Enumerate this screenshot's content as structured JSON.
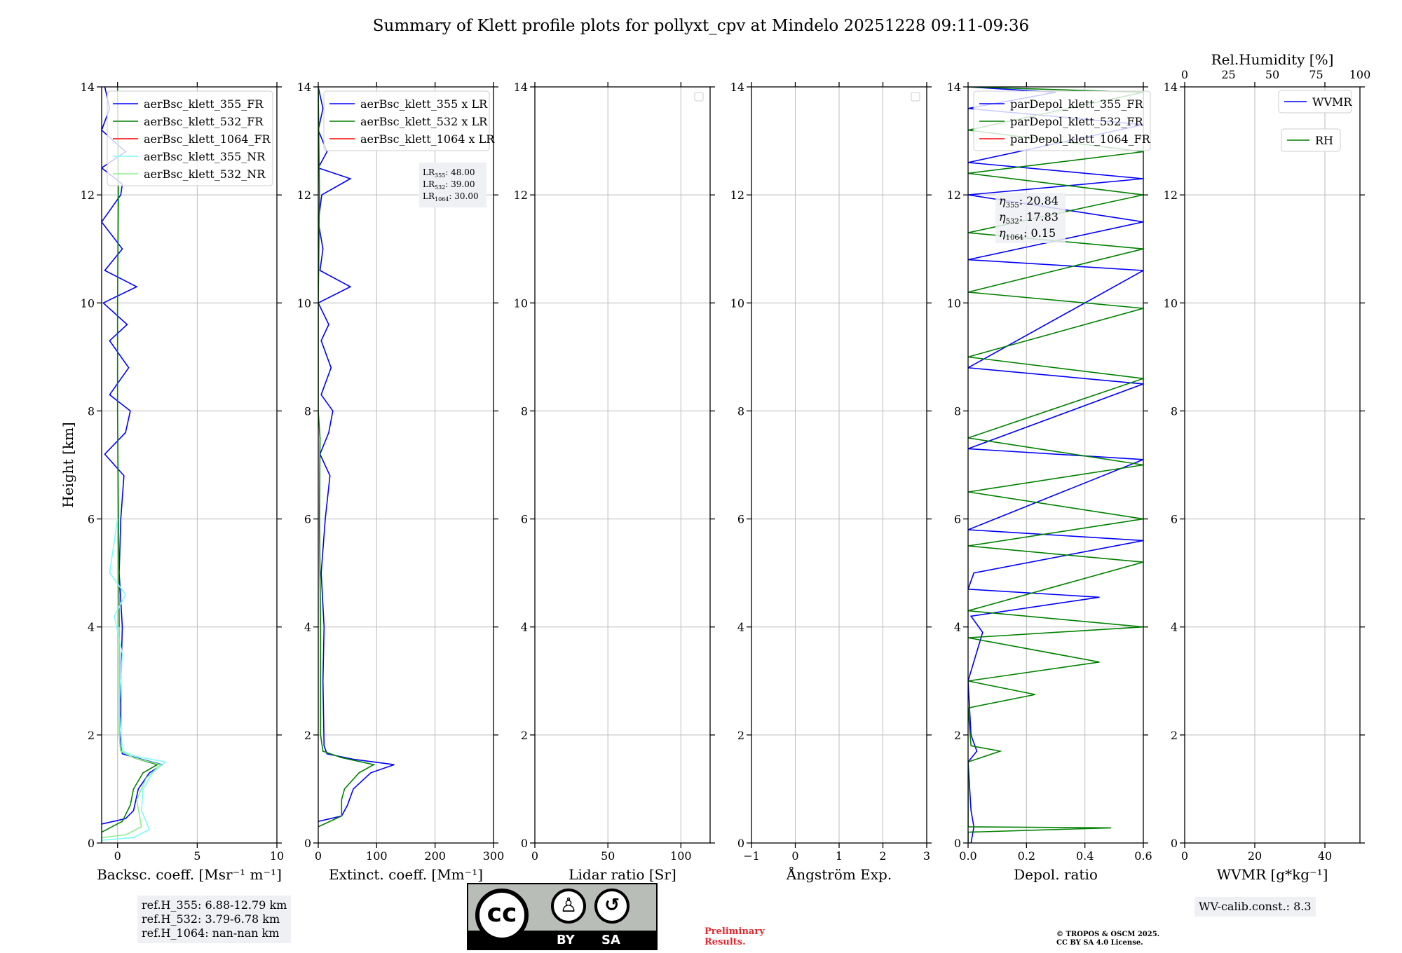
{
  "title": "Summary of Klett profile plots for pollyxt_cpv at Mindelo 20251228 09:11-09:36",
  "colors": {
    "b355": "#0000ff",
    "b532": "#008000",
    "b1064": "#ff0000",
    "n355": "#7ffbf5",
    "n532": "#90ee90"
  },
  "chart_data": [
    {
      "type": "line",
      "id": "backscatter",
      "xlabel": "Backsc. coeff. [Msr⁻¹ m⁻¹]",
      "ylabel": "Height [km]",
      "xlim": [
        -1,
        10
      ],
      "ylim": [
        0,
        14
      ],
      "xticks": [
        0,
        5,
        10
      ],
      "xtick_labels": [
        "0",
        "5",
        "10"
      ],
      "yticks": [
        0,
        2,
        4,
        6,
        8,
        10,
        12,
        14
      ],
      "legend": [
        "aerBsc_klett_355_FR",
        "aerBsc_klett_532_FR",
        "aerBsc_klett_1064_FR",
        "aerBsc_klett_355_NR",
        "aerBsc_klett_532_NR"
      ],
      "series": [
        {
          "name": "aerBsc_klett_355_FR",
          "color": "b355",
          "points": [
            [
              -1,
              0.35
            ],
            [
              0.5,
              0.45
            ],
            [
              1.0,
              0.6
            ],
            [
              1.3,
              1.0
            ],
            [
              2.0,
              1.3
            ],
            [
              2.8,
              1.45
            ],
            [
              1.5,
              1.55
            ],
            [
              0.3,
              1.65
            ],
            [
              0.2,
              1.8
            ],
            [
              0.2,
              3.0
            ],
            [
              0.3,
              4.0
            ],
            [
              0.1,
              5.0
            ],
            [
              0.2,
              6.0
            ],
            [
              0.4,
              6.8
            ],
            [
              -0.8,
              7.2
            ],
            [
              0.5,
              7.6
            ],
            [
              0.8,
              8.0
            ],
            [
              -0.5,
              8.3
            ],
            [
              0.7,
              8.8
            ],
            [
              -0.5,
              9.3
            ],
            [
              0.6,
              9.6
            ],
            [
              -0.9,
              10.0
            ],
            [
              1.2,
              10.3
            ],
            [
              -0.8,
              10.6
            ],
            [
              0.3,
              11.0
            ],
            [
              -1,
              11.5
            ],
            [
              0.2,
              12.0
            ],
            [
              0.3,
              12.2
            ],
            [
              -1,
              12.5
            ],
            [
              0.5,
              12.8
            ],
            [
              -1,
              13.2
            ],
            [
              -0.5,
              13.6
            ],
            [
              -0.8,
              14.0
            ]
          ]
        },
        {
          "name": "aerBsc_klett_532_FR",
          "color": "b532",
          "points": [
            [
              -1,
              0.2
            ],
            [
              0.3,
              0.4
            ],
            [
              0.8,
              0.7
            ],
            [
              1.0,
              1.0
            ],
            [
              1.6,
              1.3
            ],
            [
              2.5,
              1.45
            ],
            [
              1.0,
              1.58
            ],
            [
              0.2,
              1.7
            ],
            [
              0.1,
              2.0
            ],
            [
              0.1,
              4.0
            ],
            [
              0.05,
              6.0
            ],
            [
              0.0,
              8.0
            ],
            [
              0.0,
              10.0
            ],
            [
              0.05,
              12.0
            ],
            [
              0.0,
              14.0
            ]
          ]
        },
        {
          "name": "aerBsc_klett_355_NR",
          "color": "n355",
          "points": [
            [
              -1,
              0.05
            ],
            [
              1.0,
              0.1
            ],
            [
              2.0,
              0.25
            ],
            [
              1.5,
              0.6
            ],
            [
              1.6,
              1.0
            ],
            [
              2.2,
              1.3
            ],
            [
              3.0,
              1.5
            ],
            [
              1.2,
              1.6
            ],
            [
              0.3,
              1.7
            ],
            [
              0.1,
              2.5
            ],
            [
              0.3,
              3.5
            ],
            [
              -0.2,
              4.2
            ],
            [
              0.5,
              4.6
            ],
            [
              -0.5,
              5.0
            ],
            [
              0.0,
              6.0
            ]
          ]
        },
        {
          "name": "aerBsc_klett_532_NR",
          "color": "n532",
          "points": [
            [
              -1,
              0.1
            ],
            [
              0.5,
              0.15
            ],
            [
              1.5,
              0.3
            ],
            [
              1.2,
              0.8
            ],
            [
              1.8,
              1.2
            ],
            [
              2.7,
              1.45
            ],
            [
              1.0,
              1.58
            ],
            [
              0.2,
              1.7
            ],
            [
              0.1,
              2.0
            ],
            [
              0.1,
              4.0
            ]
          ]
        }
      ]
    },
    {
      "type": "line",
      "id": "extinction",
      "xlabel": "Extinct. coeff. [Mm⁻¹]",
      "xlim": [
        0,
        300
      ],
      "ylim": [
        0,
        14
      ],
      "xticks": [
        0,
        100,
        200,
        300
      ],
      "xtick_labels": [
        "0",
        "100",
        "200",
        "300"
      ],
      "yticks": [
        0,
        2,
        4,
        6,
        8,
        10,
        12,
        14
      ],
      "legend": [
        "aerBsc_klett_355 x LR",
        "aerBsc_klett_532 x LR",
        "aerBsc_klett_1064 x LR"
      ],
      "series": [
        {
          "name": "aerBsc_klett_355 x LR",
          "color": "b355",
          "points": [
            [
              0,
              0.4
            ],
            [
              40,
              0.5
            ],
            [
              50,
              0.7
            ],
            [
              60,
              1.0
            ],
            [
              90,
              1.3
            ],
            [
              130,
              1.45
            ],
            [
              60,
              1.55
            ],
            [
              15,
              1.65
            ],
            [
              10,
              1.8
            ],
            [
              8,
              3.0
            ],
            [
              10,
              4.0
            ],
            [
              5,
              5.0
            ],
            [
              12,
              6.0
            ],
            [
              20,
              6.8
            ],
            [
              3,
              7.2
            ],
            [
              18,
              7.6
            ],
            [
              25,
              8.0
            ],
            [
              5,
              8.3
            ],
            [
              22,
              8.8
            ],
            [
              5,
              9.3
            ],
            [
              18,
              9.6
            ],
            [
              0,
              10.0
            ],
            [
              55,
              10.3
            ],
            [
              3,
              10.6
            ],
            [
              8,
              11.0
            ],
            [
              0,
              11.5
            ],
            [
              6,
              12.0
            ],
            [
              55,
              12.3
            ],
            [
              0,
              12.5
            ],
            [
              15,
              12.8
            ],
            [
              0,
              13.2
            ],
            [
              8,
              13.6
            ],
            [
              0,
              14.0
            ]
          ]
        },
        {
          "name": "aerBsc_klett_532 x LR",
          "color": "b532",
          "points": [
            [
              0,
              0.3
            ],
            [
              40,
              0.5
            ],
            [
              40,
              0.8
            ],
            [
              45,
              1.0
            ],
            [
              70,
              1.3
            ],
            [
              95,
              1.45
            ],
            [
              40,
              1.58
            ],
            [
              8,
              1.7
            ],
            [
              4,
              2.0
            ],
            [
              4,
              4.0
            ],
            [
              2,
              6.0
            ],
            [
              3,
              7.5
            ],
            [
              0,
              8.0
            ],
            [
              0,
              10.0
            ],
            [
              2,
              12.0
            ],
            [
              0,
              14.0
            ]
          ]
        }
      ]
    },
    {
      "type": "line",
      "id": "lidar_ratio",
      "xlabel": "Lidar ratio [Sr]",
      "xlim": [
        0,
        120
      ],
      "ylim": [
        0,
        14
      ],
      "xticks": [
        0,
        50,
        100
      ],
      "xtick_labels": [
        "0",
        "50",
        "100"
      ],
      "yticks": [
        0,
        2,
        4,
        6,
        8,
        10,
        12,
        14
      ],
      "series": []
    },
    {
      "type": "line",
      "id": "angstrom",
      "xlabel": "Ångström Exp.",
      "xlim": [
        -1,
        3
      ],
      "ylim": [
        0,
        14
      ],
      "xticks": [
        -1,
        0,
        1,
        2,
        3
      ],
      "xtick_labels": [
        "−1",
        "0",
        "1",
        "2",
        "3"
      ],
      "yticks": [
        0,
        2,
        4,
        6,
        8,
        10,
        12,
        14
      ],
      "series": []
    },
    {
      "type": "line",
      "id": "depol",
      "xlabel": "Depol. ratio",
      "xlim": [
        0,
        0.6
      ],
      "ylim": [
        0,
        14
      ],
      "xticks": [
        0,
        0.2,
        0.4,
        0.6
      ],
      "xtick_labels": [
        "0.0",
        "0.2",
        "0.4",
        "0.6"
      ],
      "yticks": [
        0,
        2,
        4,
        6,
        8,
        10,
        12,
        14
      ],
      "legend": [
        "parDepol_klett_355_FR",
        "parDepol_klett_532_FR",
        "parDepol_klett_1064_FR"
      ],
      "series": [
        {
          "name": "parDepol_klett_355_FR",
          "color": "b355",
          "points": [
            [
              0.01,
              0
            ],
            [
              0.02,
              0.3
            ],
            [
              0.01,
              0.6
            ],
            [
              0.0,
              1.5
            ],
            [
              0.03,
              1.7
            ],
            [
              0.01,
              2.0
            ],
            [
              0.0,
              3.0
            ],
            [
              0.05,
              3.9
            ],
            [
              0.01,
              4.2
            ],
            [
              0.45,
              4.55
            ],
            [
              0.0,
              4.7
            ],
            [
              0.02,
              5.0
            ],
            [
              0.6,
              5.6
            ],
            [
              0.0,
              5.8
            ],
            [
              0.6,
              7.1
            ],
            [
              0.0,
              7.3
            ],
            [
              0.6,
              8.5
            ],
            [
              0.0,
              8.8
            ],
            [
              0.6,
              10.6
            ],
            [
              0.0,
              10.8
            ],
            [
              0.6,
              11.5
            ],
            [
              0.0,
              12.0
            ],
            [
              0.6,
              12.3
            ],
            [
              0.0,
              12.6
            ],
            [
              0.6,
              13.3
            ],
            [
              0.0,
              13.6
            ],
            [
              0.3,
              13.9
            ],
            [
              0.0,
              14.0
            ]
          ]
        },
        {
          "name": "parDepol_klett_532_FR",
          "color": "b532",
          "points": [
            [
              0.0,
              0
            ],
            [
              0.0,
              0.2
            ],
            [
              0.49,
              0.28
            ],
            [
              0.0,
              0.3
            ],
            [
              0.0,
              1.5
            ],
            [
              0.11,
              1.7
            ],
            [
              0.01,
              1.8
            ],
            [
              0.0,
              2.5
            ],
            [
              0.23,
              2.75
            ],
            [
              0.0,
              3.0
            ],
            [
              0.45,
              3.35
            ],
            [
              0.0,
              3.8
            ],
            [
              0.6,
              4.0
            ],
            [
              0.0,
              4.3
            ],
            [
              0.6,
              5.2
            ],
            [
              0.0,
              5.5
            ],
            [
              0.6,
              6.0
            ],
            [
              0.0,
              6.5
            ],
            [
              0.6,
              7.0
            ],
            [
              0.0,
              7.5
            ],
            [
              0.6,
              8.6
            ],
            [
              0.0,
              9.0
            ],
            [
              0.6,
              9.9
            ],
            [
              0.0,
              10.2
            ],
            [
              0.6,
              11.0
            ],
            [
              0.0,
              11.3
            ],
            [
              0.6,
              12.0
            ],
            [
              0.0,
              12.4
            ],
            [
              0.6,
              12.8
            ],
            [
              0.0,
              13.2
            ],
            [
              0.6,
              13.9
            ],
            [
              0.0,
              14.0
            ]
          ]
        }
      ]
    },
    {
      "type": "line",
      "id": "wvmr",
      "xlabel": "WVMR [g*kg⁻¹]",
      "top_xlabel": "Rel.Humidity [%]",
      "xlim": [
        0,
        50
      ],
      "ylim": [
        0,
        14
      ],
      "xticks": [
        0,
        20,
        40
      ],
      "xtick_labels": [
        "0",
        "20",
        "40"
      ],
      "top_xticks": [
        0,
        25,
        50,
        75,
        100
      ],
      "yticks": [
        0,
        2,
        4,
        6,
        8,
        10,
        12,
        14
      ],
      "legend": [
        "WVMR",
        "RH"
      ],
      "series": []
    }
  ],
  "annotations": {
    "lr355": "48.00",
    "lr532": "39.00",
    "lr1064": "30.00",
    "eta355": "20.84",
    "eta532": "17.83",
    "eta1064": "0.15"
  },
  "footer": {
    "ref1": "ref.H_355: 6.88-12.79 km",
    "ref2": "ref.H_532: 3.79-6.78 km",
    "ref3": "ref.H_1064: nan-nan km",
    "license_by": "BY",
    "license_sa": "SA",
    "license_cc": "cc",
    "prelim1": "Preliminary",
    "prelim2": "Results.",
    "copy1": "© TROPOS & OSCM 2025.",
    "copy2": "CC BY SA 4.0 License.",
    "wvcalib": "WV-calib.const.: 8.3"
  }
}
